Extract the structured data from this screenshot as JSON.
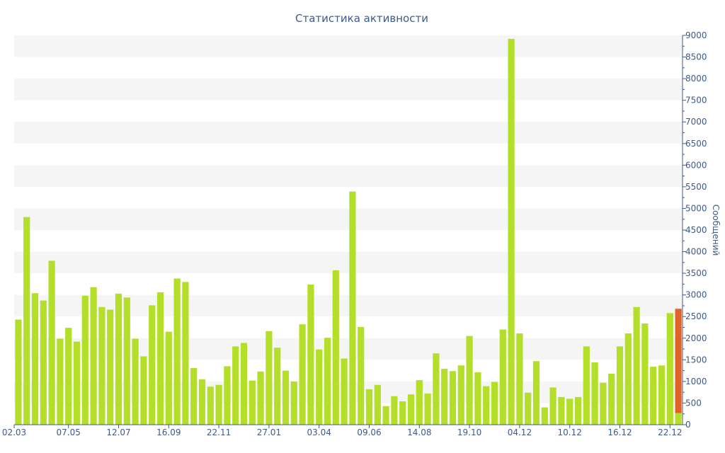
{
  "chart_data": {
    "type": "bar",
    "title": "Статистика активности",
    "ylabel": "Сообщений",
    "ylim": [
      0,
      9000
    ],
    "y_ticks": [
      0,
      500,
      1000,
      1500,
      2000,
      2500,
      3000,
      3500,
      4000,
      4500,
      5000,
      5500,
      6000,
      6500,
      7000,
      7500,
      8000,
      8500,
      9000
    ],
    "x_tick_labels": [
      {
        "label": "02.03",
        "index": 0
      },
      {
        "label": "07.05",
        "index": 6
      },
      {
        "label": "12.07",
        "index": 12
      },
      {
        "label": "16.09",
        "index": 18
      },
      {
        "label": "22.11",
        "index": 24
      },
      {
        "label": "27.01",
        "index": 30
      },
      {
        "label": "03.04",
        "index": 36
      },
      {
        "label": "09.06",
        "index": 42
      },
      {
        "label": "14.08",
        "index": 48
      },
      {
        "label": "19.10",
        "index": 54
      },
      {
        "label": "04.12",
        "index": 60
      },
      {
        "label": "10.12",
        "index": 66
      },
      {
        "label": "16.12",
        "index": 72
      },
      {
        "label": "22.12",
        "index": 78
      }
    ],
    "grid": "horizontal-bands",
    "y_axis_position": "right",
    "colors": {
      "bar": "#b3de2a",
      "highlight": "#e0632b",
      "text": "#3d5a8a",
      "band": "#f5f5f5"
    },
    "values": [
      2430,
      4800,
      3040,
      2870,
      3790,
      1990,
      2240,
      1920,
      2980,
      3180,
      2720,
      2660,
      3030,
      2940,
      1990,
      1580,
      2760,
      3060,
      2150,
      3380,
      3300,
      1310,
      1050,
      880,
      920,
      1350,
      1810,
      1890,
      1020,
      1230,
      2160,
      1780,
      1250,
      1000,
      2320,
      3240,
      1740,
      2010,
      3570,
      1530,
      5390,
      2260,
      820,
      920,
      430,
      660,
      540,
      700,
      1030,
      720,
      1650,
      1290,
      1240,
      1370,
      2050,
      1210,
      890,
      990,
      2200,
      8920,
      2110,
      740,
      1470,
      400,
      860,
      640,
      600,
      640,
      1810,
      1440,
      970,
      1180,
      1810,
      2110,
      2720,
      2340,
      1340,
      1370,
      2580,
      2680
    ],
    "last_bar_highlight": {
      "index": 79,
      "total": 2680,
      "base": 270
    }
  }
}
